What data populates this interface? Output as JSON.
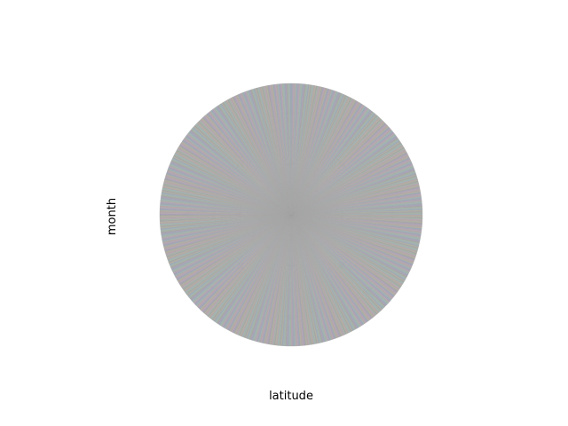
{
  "chart_data": {
    "type": "pie",
    "title": "",
    "xlabel": "latitude",
    "ylabel": "month",
    "slice_count": 720,
    "values": "uniform",
    "colors": [
      "#9aa9b8",
      "#b8a6a6",
      "#a3b7a6",
      "#aaa0bd",
      "#b5b2a0",
      "#9fb6b8",
      "#b9a7b5",
      "#a5a5a5"
    ],
    "legend": "none"
  }
}
